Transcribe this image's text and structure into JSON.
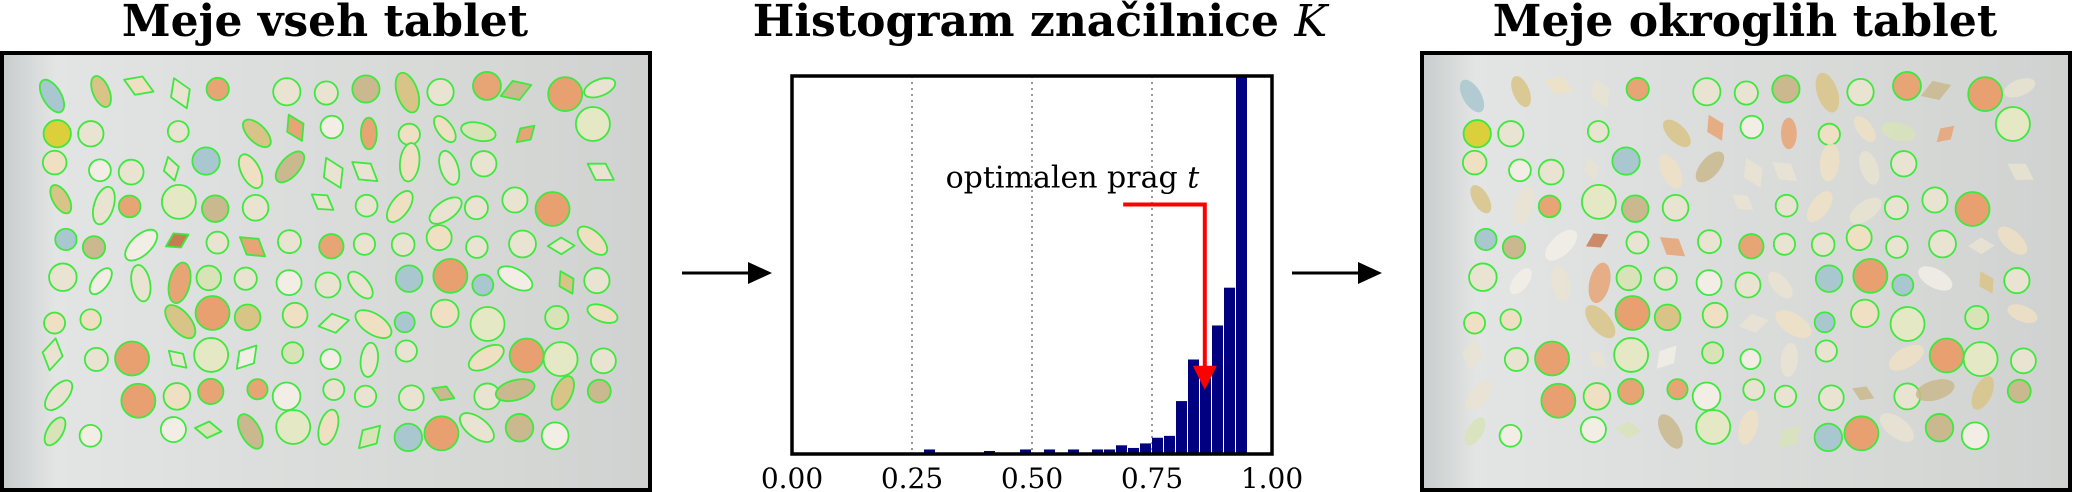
{
  "titles": {
    "left": "Meje vseh tablet",
    "middle_prefix": "Histogram značilnice ",
    "middle_var": "K",
    "right": "Meje okroglih tablet"
  },
  "colors": {
    "contour": "#3ee83e",
    "threshold_arrow": "#ff0000",
    "bars": "#000080"
  },
  "chart_data": {
    "type": "bar",
    "xlim": [
      0,
      1
    ],
    "ylim": [
      0,
      1
    ],
    "x_ticks": [
      "0.00",
      "0.25",
      "0.50",
      "0.75",
      "1.00"
    ],
    "grid": "vertical dotted at ticks",
    "bin_width": 0.025,
    "bins": [
      {
        "x": 0.275,
        "h": 0.012
      },
      {
        "x": 0.4,
        "h": 0.008
      },
      {
        "x": 0.475,
        "h": 0.012
      },
      {
        "x": 0.525,
        "h": 0.012
      },
      {
        "x": 0.575,
        "h": 0.012
      },
      {
        "x": 0.625,
        "h": 0.012
      },
      {
        "x": 0.65,
        "h": 0.012
      },
      {
        "x": 0.675,
        "h": 0.023
      },
      {
        "x": 0.7,
        "h": 0.016
      },
      {
        "x": 0.725,
        "h": 0.028
      },
      {
        "x": 0.75,
        "h": 0.043
      },
      {
        "x": 0.775,
        "h": 0.048
      },
      {
        "x": 0.8,
        "h": 0.14
      },
      {
        "x": 0.825,
        "h": 0.25
      },
      {
        "x": 0.85,
        "h": 0.2
      },
      {
        "x": 0.875,
        "h": 0.34
      },
      {
        "x": 0.9,
        "h": 0.44
      },
      {
        "x": 0.925,
        "h": 1.0
      }
    ],
    "threshold": {
      "label": "optimalen prag ",
      "var": "t",
      "x": 0.86
    }
  }
}
